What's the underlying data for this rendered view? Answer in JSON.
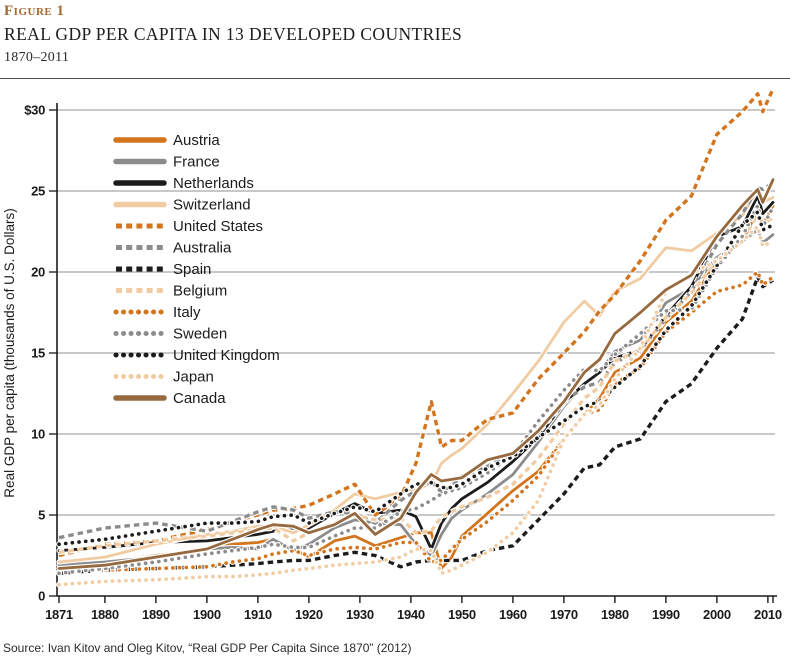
{
  "header": {
    "figure_label": "Figure 1",
    "title": "REAL GDP PER CAPITA IN 13 DEVELOPED COUNTRIES",
    "subtitle": "1870–2011"
  },
  "footer": {
    "source": "Source: Ivan Kitov and Oleg Kitov, “Real GDP Per Capita Since 1870” (2012)"
  },
  "colors": {
    "orange": "#D2751E",
    "gray": "#8C8C8C",
    "black": "#1C1C1C",
    "tan": "#F1CCA2",
    "brown": "#96693F",
    "grid": "#919191",
    "axis": "#1A1A1A",
    "figure_label": "#A4682F"
  },
  "chart_data": {
    "type": "line",
    "title": "Real GDP per capita in 13 developed countries, 1870–2011",
    "xlabel": "",
    "ylabel": "Real GDP per capita (thousands of U.S. Dollars)",
    "xlim": [
      1871,
      2011
    ],
    "ylim": [
      0,
      30
    ],
    "grid": true,
    "legend_position": "inside-upper-left",
    "y_tick_labels": [
      "$30",
      "25",
      "20",
      "15",
      "10",
      "5",
      "0"
    ],
    "y_tick_values": [
      30,
      25,
      20,
      15,
      10,
      5,
      0
    ],
    "x_tick_labels": [
      "1871",
      "1880",
      "1890",
      "1900",
      "1910",
      "1920",
      "1930",
      "1940",
      "1950",
      "1960",
      "1970",
      "1980",
      "1990",
      "2000",
      "2010"
    ],
    "x": [
      1871,
      1880,
      1890,
      1900,
      1905,
      1910,
      1913,
      1917,
      1920,
      1925,
      1929,
      1933,
      1938,
      1941,
      1944,
      1946,
      1948,
      1950,
      1955,
      1960,
      1965,
      1970,
      1974,
      1977,
      1980,
      1985,
      1990,
      1995,
      2000,
      2005,
      2008,
      2009,
      2011
    ],
    "series": [
      {
        "name": "Austria",
        "color": "#D2751E",
        "dash": "solid",
        "values": [
          1.9,
          2.1,
          2.5,
          2.9,
          3.2,
          3.3,
          3.5,
          2.9,
          2.4,
          3.4,
          3.7,
          3.1,
          3.6,
          3.9,
          3.9,
          1.7,
          2.4,
          3.7,
          5.1,
          6.5,
          7.7,
          9.7,
          11.2,
          12.2,
          13.8,
          14.7,
          16.9,
          18.2,
          20.7,
          21.9,
          23.8,
          22.9,
          24.1
        ]
      },
      {
        "name": "France",
        "color": "#8C8C8C",
        "dash": "solid",
        "values": [
          1.9,
          2.1,
          2.4,
          2.9,
          3.0,
          2.9,
          3.5,
          2.8,
          3.2,
          4.2,
          4.7,
          4.5,
          4.4,
          3.2,
          2.5,
          3.8,
          4.8,
          5.3,
          6.3,
          7.5,
          9.5,
          11.7,
          13.1,
          13.8,
          15.1,
          15.8,
          18.1,
          19.0,
          20.9,
          21.9,
          22.6,
          21.8,
          22.3
        ]
      },
      {
        "name": "Netherlands",
        "color": "#1C1C1C",
        "dash": "solid",
        "values": [
          2.8,
          3.0,
          3.3,
          3.4,
          3.6,
          3.8,
          4.0,
          4.2,
          4.2,
          5.1,
          5.7,
          5.1,
          5.3,
          4.9,
          2.9,
          4.5,
          5.4,
          6.0,
          7.0,
          8.3,
          9.8,
          11.9,
          13.1,
          13.8,
          14.7,
          15.2,
          17.3,
          19.1,
          22.2,
          22.8,
          24.7,
          23.6,
          24.3
        ]
      },
      {
        "name": "Switzerland",
        "color": "#F1CCA2",
        "dash": "solid",
        "values": [
          2.1,
          2.4,
          3.2,
          3.8,
          4.0,
          4.3,
          4.3,
          3.9,
          4.4,
          5.3,
          6.3,
          6.0,
          6.4,
          6.6,
          6.9,
          8.2,
          8.7,
          9.1,
          10.6,
          12.5,
          14.5,
          16.9,
          18.2,
          17.3,
          18.8,
          19.6,
          21.5,
          21.3,
          22.4,
          23.5,
          25.1,
          24.3,
          24.6
        ]
      },
      {
        "name": "United States",
        "color": "#D2751E",
        "dash": "dashed",
        "values": [
          2.5,
          3.2,
          3.4,
          4.1,
          4.6,
          5.0,
          5.3,
          5.4,
          5.6,
          6.3,
          6.9,
          5.0,
          6.1,
          8.2,
          12.0,
          9.2,
          9.6,
          9.6,
          10.9,
          11.3,
          13.4,
          15.0,
          16.3,
          17.6,
          18.6,
          20.7,
          23.2,
          24.7,
          28.5,
          29.9,
          31.0,
          29.9,
          31.3
        ]
      },
      {
        "name": "Australia",
        "color": "#8C8C8C",
        "dash": "dashed",
        "values": [
          3.6,
          4.2,
          4.5,
          4.0,
          4.6,
          5.2,
          5.5,
          5.3,
          4.8,
          5.2,
          5.1,
          4.5,
          5.9,
          6.5,
          7.1,
          6.4,
          6.8,
          7.4,
          8.0,
          8.8,
          10.1,
          12.0,
          12.9,
          13.2,
          14.4,
          15.2,
          17.1,
          18.8,
          21.7,
          23.6,
          25.2,
          25.1,
          25.5
        ]
      },
      {
        "name": "Spain",
        "color": "#1C1C1C",
        "dash": "dashed",
        "values": [
          1.4,
          1.6,
          1.7,
          1.8,
          1.9,
          2.0,
          2.1,
          2.2,
          2.2,
          2.5,
          2.7,
          2.5,
          1.8,
          2.1,
          2.2,
          2.2,
          2.2,
          2.2,
          2.8,
          3.1,
          4.7,
          6.3,
          7.9,
          8.1,
          9.2,
          9.7,
          12.0,
          13.1,
          15.3,
          17.1,
          19.7,
          19.1,
          19.5
        ]
      },
      {
        "name": "Belgium",
        "color": "#F1CCA2",
        "dash": "dashed",
        "values": [
          2.7,
          3.1,
          3.4,
          3.7,
          3.9,
          4.1,
          4.2,
          3.4,
          3.9,
          4.5,
          5.0,
          4.7,
          4.8,
          3.9,
          4.0,
          4.9,
          5.2,
          5.5,
          6.1,
          6.9,
          8.5,
          10.6,
          12.2,
          12.9,
          14.5,
          15.2,
          17.2,
          18.7,
          20.7,
          21.9,
          23.6,
          22.9,
          23.4
        ]
      },
      {
        "name": "Italy",
        "color": "#D2751E",
        "dash": "dotted",
        "values": [
          1.5,
          1.6,
          1.7,
          1.8,
          2.1,
          2.3,
          2.6,
          2.8,
          2.5,
          2.9,
          3.0,
          2.9,
          3.3,
          3.3,
          2.1,
          2.2,
          2.9,
          3.5,
          4.6,
          5.9,
          7.4,
          9.7,
          11.2,
          11.5,
          13.1,
          14.1,
          16.3,
          17.5,
          18.8,
          19.2,
          20.0,
          19.2,
          19.7
        ]
      },
      {
        "name": "Sweden",
        "color": "#8C8C8C",
        "dash": "dotted",
        "values": [
          1.4,
          1.7,
          2.1,
          2.6,
          2.8,
          3.0,
          3.2,
          3.0,
          3.0,
          3.7,
          4.2,
          4.2,
          5.2,
          5.4,
          5.9,
          6.3,
          6.5,
          6.7,
          7.6,
          8.7,
          10.8,
          12.7,
          14.0,
          13.9,
          14.9,
          16.2,
          17.6,
          17.7,
          20.3,
          22.2,
          24.1,
          22.8,
          24.0
        ]
      },
      {
        "name": "United Kingdom",
        "color": "#1C1C1C",
        "dash": "dotted",
        "values": [
          3.2,
          3.5,
          4.0,
          4.5,
          4.5,
          4.6,
          4.9,
          5.0,
          4.5,
          5.1,
          5.5,
          5.2,
          6.3,
          6.9,
          7.0,
          6.7,
          6.7,
          6.9,
          7.9,
          8.6,
          9.8,
          10.8,
          11.7,
          12.0,
          12.9,
          14.2,
          16.4,
          17.9,
          20.4,
          22.9,
          23.7,
          22.6,
          22.9
        ]
      },
      {
        "name": "Japan",
        "color": "#F1CCA2",
        "dash": "dotted",
        "values": [
          0.7,
          0.9,
          1.0,
          1.2,
          1.2,
          1.3,
          1.4,
          1.6,
          1.7,
          1.9,
          2.0,
          2.1,
          2.4,
          2.9,
          2.8,
          1.4,
          1.6,
          1.9,
          2.7,
          3.9,
          5.9,
          9.7,
          11.2,
          11.8,
          13.4,
          15.3,
          18.8,
          19.9,
          20.7,
          21.9,
          22.8,
          21.6,
          21.9
        ]
      },
      {
        "name": "Canada",
        "color": "#96693F",
        "dash": "solid",
        "values": [
          1.7,
          1.9,
          2.4,
          2.9,
          3.5,
          4.1,
          4.4,
          4.3,
          3.9,
          4.4,
          5.1,
          3.8,
          4.8,
          6.4,
          7.5,
          7.1,
          7.2,
          7.3,
          8.4,
          8.8,
          10.2,
          12.0,
          13.8,
          14.6,
          16.2,
          17.5,
          18.9,
          19.8,
          22.2,
          24.1,
          25.1,
          24.3,
          25.7
        ]
      }
    ]
  }
}
